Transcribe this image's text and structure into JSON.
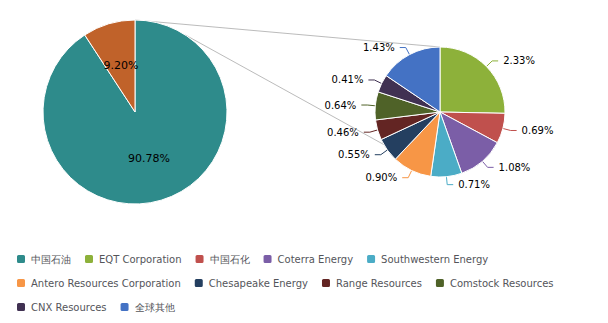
{
  "chart_data": [
    {
      "type": "pie",
      "categories": [
        "中国石油",
        null
      ],
      "values": [
        90.78,
        9.2
      ],
      "value_labels": [
        "90.78%",
        "9.20%"
      ],
      "colors": [
        "#2e8b8b",
        "#c0622a"
      ],
      "data_labels": true,
      "legend": "lower left"
    },
    {
      "type": "pie",
      "categories": [
        "EQT Corporation",
        "中国石化",
        "Coterra Energy",
        "Southwestern Energy",
        "Antero Resources Corporation",
        "Chesapeake Energy",
        "Range Resources",
        "Comstock Resources",
        "CNX Resources",
        "全球其他"
      ],
      "values": [
        2.33,
        0.69,
        1.08,
        0.71,
        0.9,
        0.55,
        0.46,
        0.64,
        0.41,
        1.43
      ],
      "value_labels": [
        "2.33%",
        "0.69%",
        "1.08%",
        "0.71%",
        "0.90%",
        "0.55%",
        "0.46%",
        "0.64%",
        "0.41%",
        "1.43%"
      ],
      "colors": [
        "#8db13a",
        "#c0504d",
        "#7b5ea7",
        "#4bacc6",
        "#f79646",
        "#243f60",
        "#632523",
        "#4f6228",
        "#403152",
        "#4472c4"
      ],
      "data_labels": true,
      "legend": "lower left"
    }
  ]
}
